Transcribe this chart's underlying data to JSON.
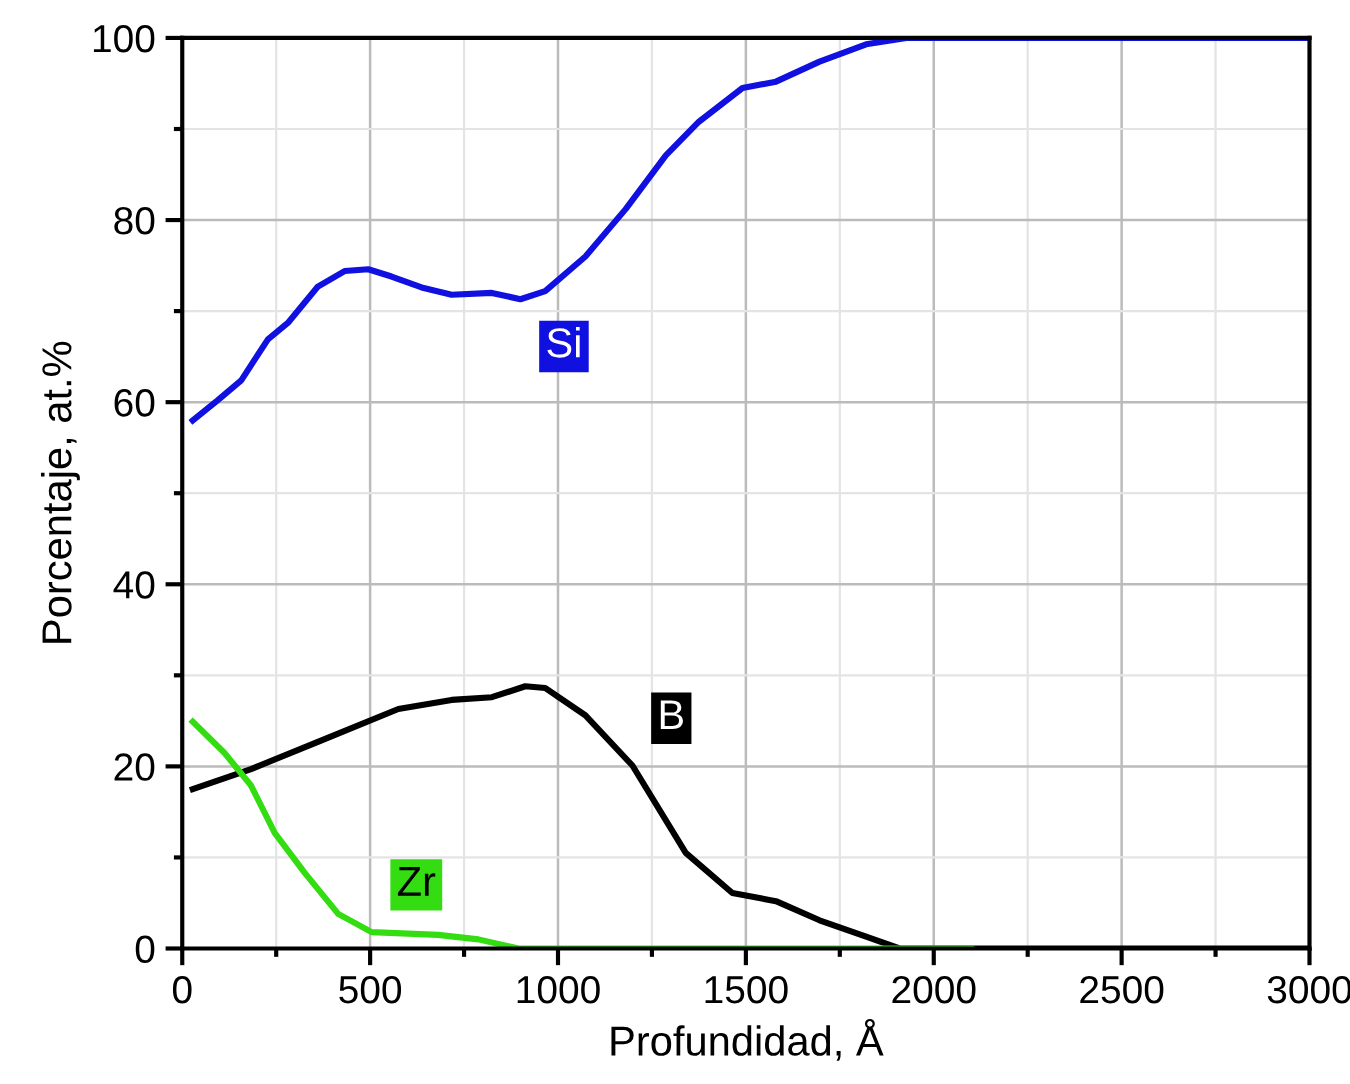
{
  "chart_data": {
    "type": "line",
    "xlabel": "Profundidad, Å",
    "ylabel": "Porcentaje, at.%",
    "xlim": [
      0,
      3000
    ],
    "ylim": [
      0,
      100
    ],
    "xticks": [
      0,
      500,
      1000,
      1500,
      2000,
      2500,
      3000
    ],
    "yticks": [
      0,
      20,
      40,
      60,
      80,
      100
    ],
    "grid": true,
    "legend": false,
    "marker": "none",
    "line_style": "solid",
    "series": [
      {
        "name": "Si",
        "color": "#1010e0",
        "x": [
          28,
          94,
          157,
          228,
          281,
          361,
          432,
          495,
          557,
          637,
          717,
          824,
          900,
          966,
          1073,
          1180,
          1287,
          1375,
          1491,
          1580,
          1696,
          1820,
          1927,
          2000,
          3000
        ],
        "values": [
          58.0,
          60.2,
          62.4,
          66.9,
          68.7,
          72.7,
          74.4,
          74.6,
          73.8,
          72.6,
          71.8,
          72.0,
          71.3,
          72.2,
          76.0,
          81.2,
          87.1,
          90.8,
          94.5,
          95.2,
          97.4,
          99.3,
          100,
          100,
          100
        ]
      },
      {
        "name": "B",
        "color": "#000000",
        "x": [
          28,
          183,
          361,
          575,
          717,
          824,
          913,
          966,
          1073,
          1198,
          1340,
          1464,
          1580,
          1696,
          1820,
          1909,
          2500,
          3000
        ],
        "values": [
          17.5,
          19.7,
          22.7,
          26.3,
          27.3,
          27.6,
          28.8,
          28.6,
          25.6,
          20.1,
          10.5,
          6.1,
          5.2,
          3.1,
          1.3,
          0,
          0,
          0
        ]
      },
      {
        "name": "Zr",
        "color": "#33dd11",
        "x": [
          28,
          112,
          183,
          246,
          326,
          415,
          504,
          681,
          788,
          895,
          1500,
          2100
        ],
        "values": [
          24.9,
          21.5,
          17.9,
          12.7,
          8.3,
          3.8,
          1.8,
          1.5,
          1.0,
          0,
          0,
          0
        ]
      }
    ]
  }
}
